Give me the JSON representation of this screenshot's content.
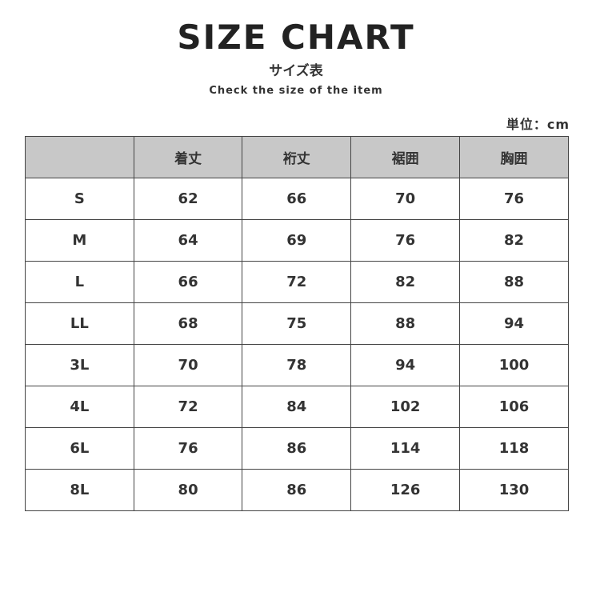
{
  "title": "SIZE CHART",
  "subtitle": "サイズ表",
  "tagline": "Check the size of the item",
  "unit": "単位：cm",
  "table": {
    "headers": [
      "",
      "着丈",
      "裄丈",
      "裾囲",
      "胸囲"
    ],
    "rows": [
      [
        "S",
        "62",
        "66",
        "70",
        "76"
      ],
      [
        "M",
        "64",
        "69",
        "76",
        "82"
      ],
      [
        "L",
        "66",
        "72",
        "82",
        "88"
      ],
      [
        "LL",
        "68",
        "75",
        "88",
        "94"
      ],
      [
        "3L",
        "70",
        "78",
        "94",
        "100"
      ],
      [
        "4L",
        "72",
        "84",
        "102",
        "106"
      ],
      [
        "6L",
        "76",
        "86",
        "114",
        "118"
      ],
      [
        "8L",
        "80",
        "86",
        "126",
        "130"
      ]
    ]
  },
  "colors": {
    "header_bg": "#c8c8c8",
    "border": "#444444",
    "text": "#333333"
  }
}
